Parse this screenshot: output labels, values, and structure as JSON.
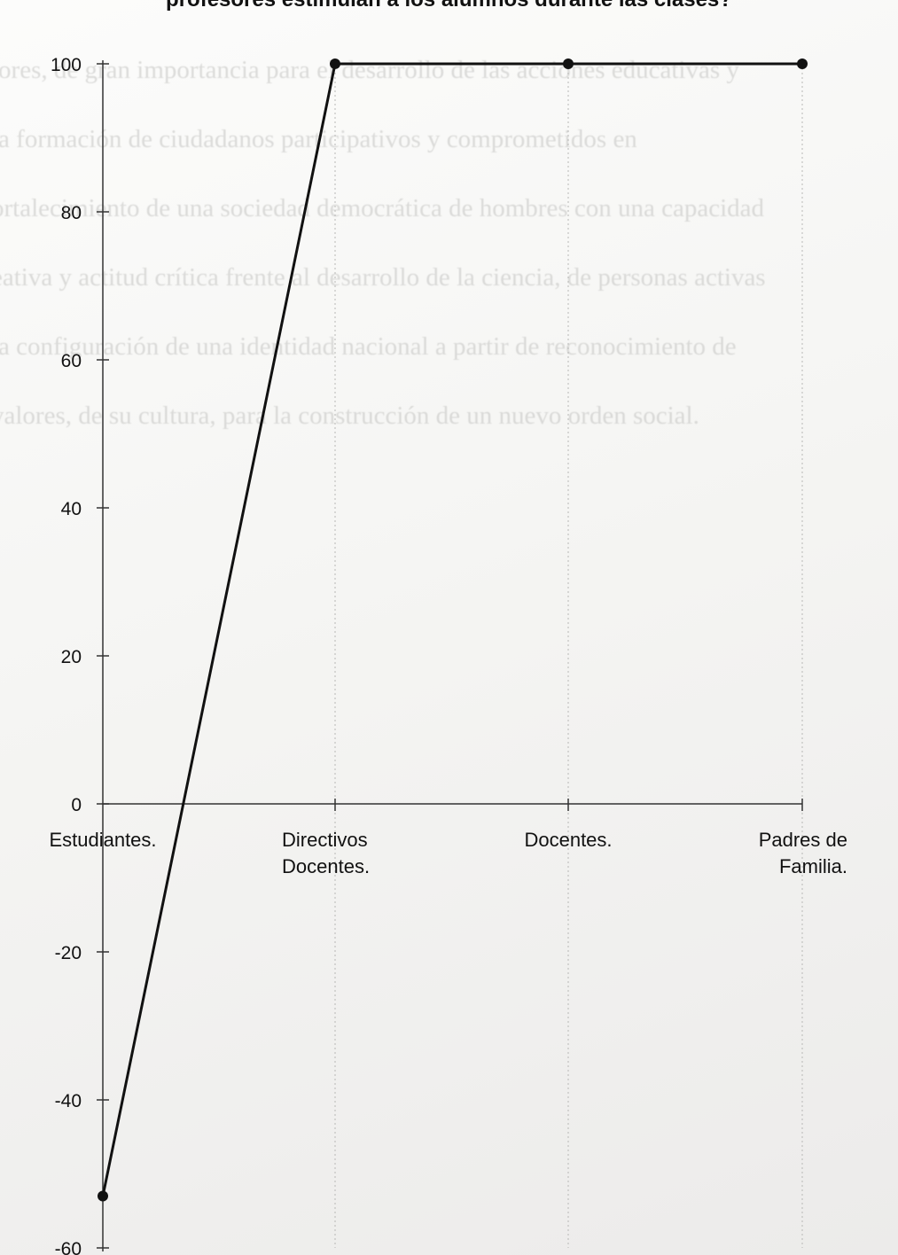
{
  "chart_data": {
    "type": "line",
    "title": "profesores estimulan a los alumnos durante las clases?",
    "xlabel": "",
    "ylabel": "",
    "categories": [
      [
        "Estudiantes."
      ],
      [
        "Directivos",
        "Docentes."
      ],
      [
        "Docentes."
      ],
      [
        "Padres de",
        "Familia."
      ]
    ],
    "series": [
      {
        "values": [
          -53,
          100,
          100,
          100
        ],
        "color": "#111111"
      }
    ],
    "ylim": [
      -60,
      100
    ],
    "yticks": [
      100,
      80,
      60,
      40,
      20,
      0,
      -20,
      -40,
      -60
    ],
    "grid": "faint vertical dotted"
  },
  "background_text": [
    "tores, de gran importancia para el desarrollo de las acciones educativas y",
    "la formación de ciudadanos participativos y comprometidos en",
    "ortalecimiento de una sociedad democrática de hombres con una capacidad",
    "eativa y actitud crítica frente al desarrollo de la ciencia, de personas activas",
    "la configuración de una identidad nacional a partir de reconocimiento de",
    "valores, de su cultura, para la construcción de un nuevo orden social."
  ]
}
